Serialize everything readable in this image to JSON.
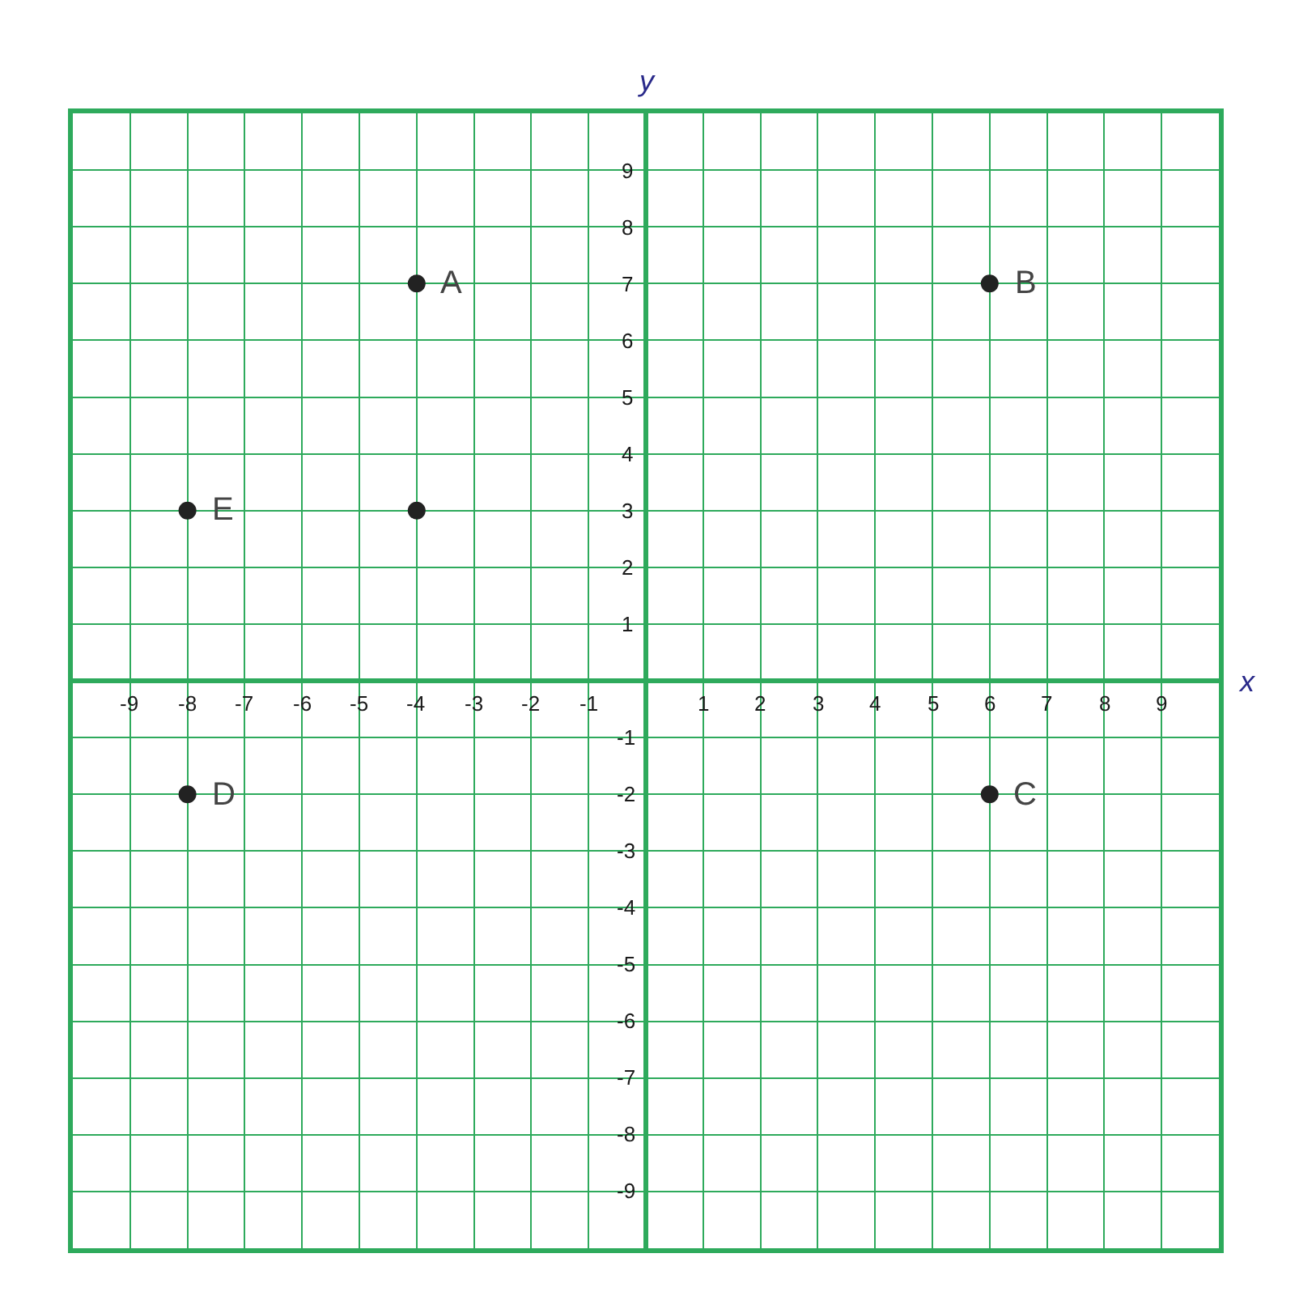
{
  "chart_data": {
    "type": "scatter",
    "xlabel": "x",
    "ylabel": "y",
    "x": [
      -4,
      6,
      6,
      -8,
      -8,
      -4
    ],
    "series": [
      {
        "color": "#222222",
        "values": [
          7,
          7,
          -2,
          -2,
          3,
          3
        ]
      }
    ],
    "marker": "circle",
    "xlim": [
      -10,
      10
    ],
    "ylim": [
      -10,
      10
    ],
    "xticks": [
      -9,
      -8,
      -7,
      -6,
      -5,
      -4,
      -3,
      -2,
      -1,
      1,
      2,
      3,
      4,
      5,
      6,
      7,
      8,
      9
    ],
    "yticks": [
      -9,
      -8,
      -7,
      -6,
      -5,
      -4,
      -3,
      -2,
      -1,
      1,
      2,
      3,
      4,
      5,
      6,
      7,
      8,
      9
    ],
    "grid": true,
    "annotations": [
      {
        "text": "A",
        "x": -4,
        "y": 7
      },
      {
        "text": "B",
        "x": 6,
        "y": 7
      },
      {
        "text": "C",
        "x": 6,
        "y": -2
      },
      {
        "text": "D",
        "x": -8,
        "y": -2
      },
      {
        "text": "E",
        "x": -8,
        "y": 3
      }
    ]
  }
}
